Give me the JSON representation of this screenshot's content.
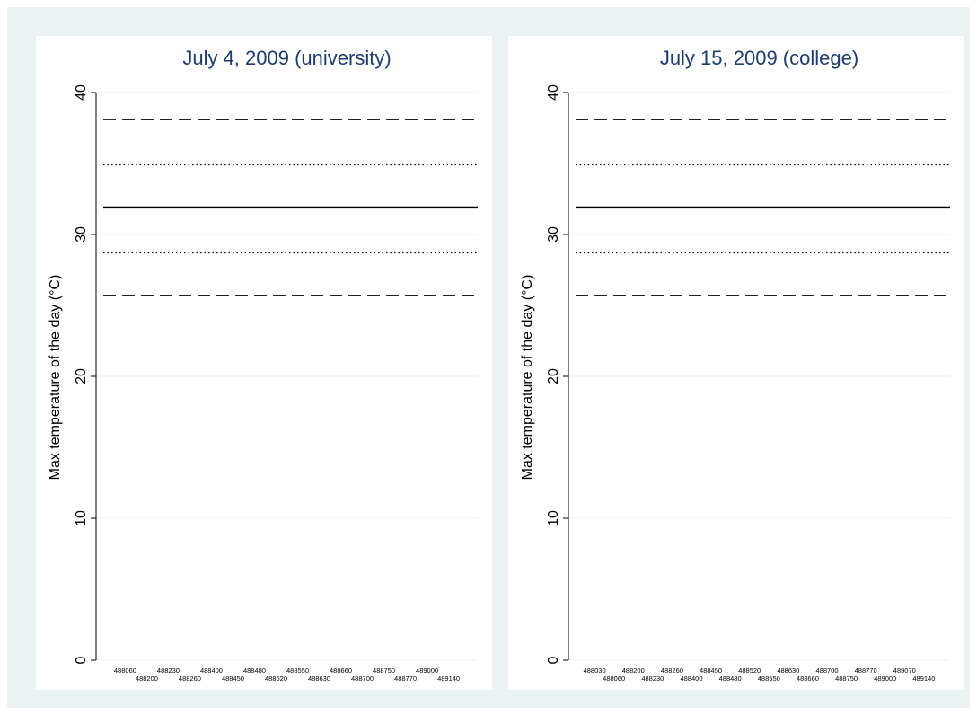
{
  "chart_data": [
    {
      "type": "hline",
      "title": "July 4, 2009 (university)",
      "y_label": "Max temperature of the day (°C)",
      "categories": [
        "488060",
        "488200",
        "488230",
        "488260",
        "488400",
        "488450",
        "488480",
        "488520",
        "488550",
        "488630",
        "488660",
        "488700",
        "488750",
        "488770",
        "489000",
        "489140"
      ],
      "hlines": [
        {
          "value": 38.1,
          "style": "dashed"
        },
        {
          "value": 34.9,
          "style": "dotted"
        },
        {
          "value": 31.9,
          "style": "solid"
        },
        {
          "value": 28.7,
          "style": "dotted"
        },
        {
          "value": 25.7,
          "style": "dashed"
        }
      ],
      "ylim": [
        0,
        40
      ],
      "yticks": [
        0,
        10,
        20,
        30,
        40
      ],
      "grid": true
    },
    {
      "type": "hline",
      "title": "July 15, 2009 (college)",
      "y_label": "Max temperature of the day (°C)",
      "categories": [
        "488030",
        "488060",
        "488200",
        "488230",
        "488260",
        "488400",
        "488450",
        "488480",
        "488520",
        "488550",
        "488630",
        "488660",
        "488700",
        "488750",
        "488770",
        "489000",
        "489070",
        "489140"
      ],
      "hlines": [
        {
          "value": 38.1,
          "style": "dashed"
        },
        {
          "value": 34.9,
          "style": "dotted"
        },
        {
          "value": 31.9,
          "style": "solid"
        },
        {
          "value": 28.7,
          "style": "dotted"
        },
        {
          "value": 25.7,
          "style": "dashed"
        }
      ],
      "ylim": [
        0,
        40
      ],
      "yticks": [
        0,
        10,
        20,
        30,
        40
      ],
      "grid": true
    }
  ]
}
